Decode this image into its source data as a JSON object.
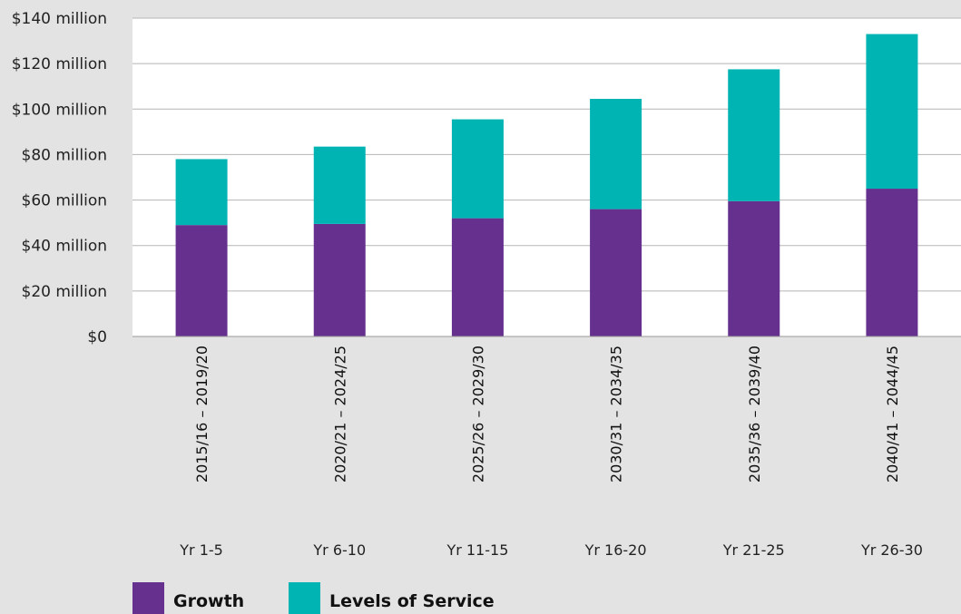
{
  "chart_data": {
    "type": "bar",
    "stacked": true,
    "categories": [
      "2015/16 – 2019/20",
      "2020/21 – 2024/25",
      "2025/26 – 2029/30",
      "2030/31 – 2034/35",
      "2035/36 – 2039/40",
      "2040/41 – 2044/45"
    ],
    "period_labels": [
      "Yr 1-5",
      "Yr 6-10",
      "Yr 11-15",
      "Yr 16-20",
      "Yr 21-25",
      "Yr 26-30"
    ],
    "series": [
      {
        "name": "Growth",
        "color": "#66308f",
        "values": [
          49,
          49.5,
          52,
          56,
          59.5,
          65
        ]
      },
      {
        "name": "Levels of Service",
        "color": "#00b4b4",
        "values": [
          29,
          34,
          43.5,
          48.5,
          58,
          68
        ]
      }
    ],
    "ylim": [
      0,
      140
    ],
    "yticks": [
      {
        "value": 0,
        "label": "$0"
      },
      {
        "value": 20,
        "label": "$20 million"
      },
      {
        "value": 40,
        "label": "$40 million"
      },
      {
        "value": 60,
        "label": "$60 million"
      },
      {
        "value": 80,
        "label": "$80 million"
      },
      {
        "value": 100,
        "label": "$100 million"
      },
      {
        "value": 120,
        "label": "$120 million"
      },
      {
        "value": 140,
        "label": "$140 million"
      }
    ],
    "grid": true,
    "legend_position": "bottom-left"
  },
  "colors": {
    "background": "#e3e3e3",
    "plot_background": "#ffffff",
    "gridline": "#b5b5b5"
  }
}
